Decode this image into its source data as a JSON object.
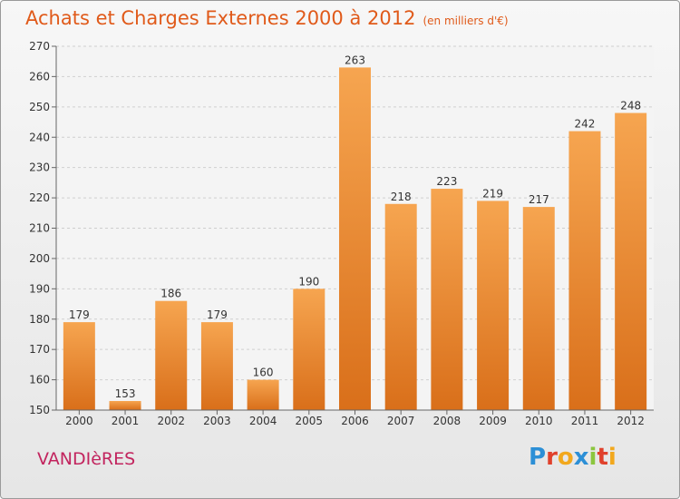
{
  "chart_data": {
    "type": "bar",
    "title": "Achats et Charges Externes 2000 à 2012",
    "subtitle": "(en milliers d'€)",
    "categories": [
      "2000",
      "2001",
      "2002",
      "2003",
      "2004",
      "2005",
      "2006",
      "2007",
      "2008",
      "2009",
      "2010",
      "2011",
      "2012"
    ],
    "values": [
      179,
      153,
      186,
      179,
      160,
      190,
      263,
      218,
      223,
      219,
      217,
      242,
      248
    ],
    "ylim": [
      150,
      270
    ],
    "yticks": [
      150,
      160,
      170,
      180,
      190,
      200,
      210,
      220,
      230,
      240,
      250,
      260,
      270
    ],
    "grid": true,
    "bar_color_top": "#f6a550",
    "bar_color_bottom": "#d96f1a"
  },
  "commune": "VANDIèRES",
  "logo": {
    "letters": [
      "P",
      "r",
      "o",
      "x",
      "i",
      "t",
      "i"
    ],
    "colors": [
      "#2c8fd6",
      "#e0412c",
      "#f2a81d",
      "#2c8fd6",
      "#8cc63f",
      "#e0412c",
      "#f2a81d"
    ]
  }
}
